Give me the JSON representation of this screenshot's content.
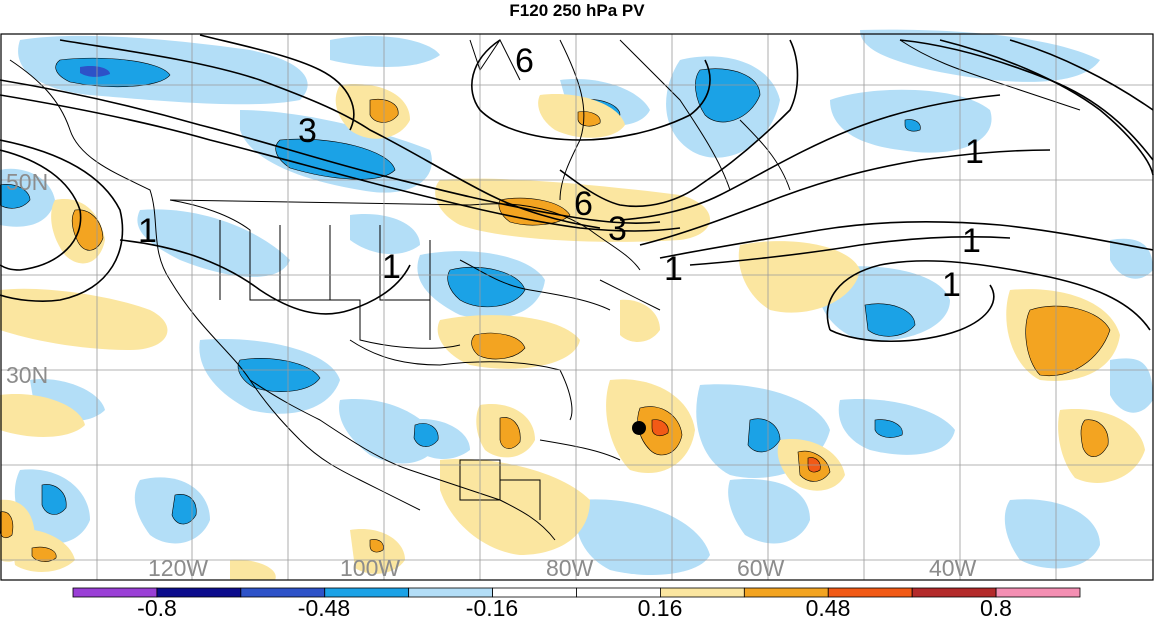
{
  "title": "F120 250 hPa PV",
  "longitude_labels": [
    "120W",
    "100W",
    "80W",
    "60W",
    "40W"
  ],
  "latitude_labels": [
    "50N",
    "30N"
  ],
  "contour_labels": [
    "6",
    "3",
    "1",
    "6",
    "3",
    "1",
    "1",
    "1",
    "1"
  ],
  "colorbar": {
    "tick_labels": [
      "-0.8",
      "-0.48",
      "-0.16",
      "0.16",
      "0.48",
      "0.8"
    ],
    "colors": [
      "#9a3fd6",
      "#0c0c8c",
      "#2d52c8",
      "#1ba2e6",
      "#b3def7",
      "#ffffff",
      "#ffffff",
      "#fbe6a0",
      "#f3a421",
      "#f25a16",
      "#b32a2a",
      "#f48fb3"
    ]
  },
  "colors": {
    "neg_light": "#b3def7",
    "neg_med": "#1ba2e6",
    "neg_strong": "#2d52c8",
    "neg_extreme": "#0c0c8c",
    "pos_light": "#fbe6a0",
    "pos_med": "#f3a421",
    "pos_strong": "#f25a16",
    "contour": "#000000",
    "boundary": "#000000",
    "grid": "#9a9a9a"
  },
  "marker": {
    "name": "storm-position-dot",
    "color": "#000000"
  }
}
